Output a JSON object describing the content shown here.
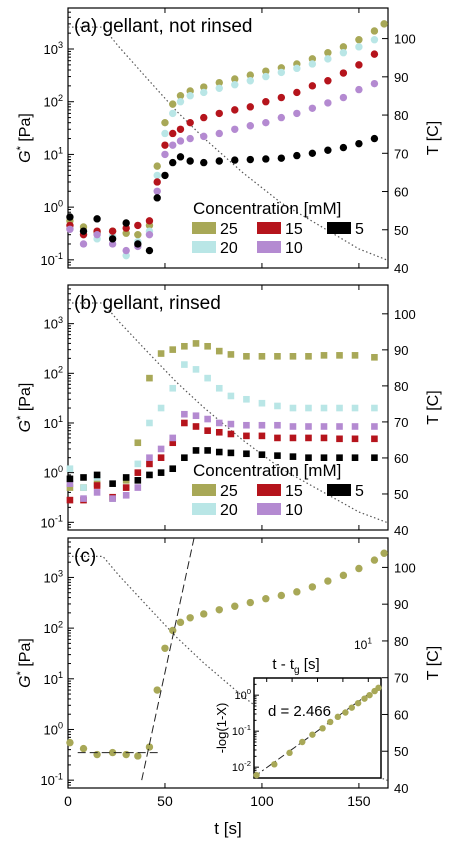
{
  "colors": {
    "c25": "#a8a857",
    "c20": "#b9e6e6",
    "c15": "#b5141c",
    "c10": "#b48ad1",
    "c5": "#000000",
    "axis": "#000000",
    "ttrace": "#555555"
  },
  "shared": {
    "ylabel_main": "G",
    "ylabel_sup": "*",
    "ylabel_unit": " [Pa]",
    "ylabel_right": "T [C]",
    "xlabel": "t [s]",
    "x_ticks": [
      "0",
      "50",
      "100",
      "150"
    ],
    "y_ticks_left": [
      {
        "base": "10",
        "exp": "-1"
      },
      {
        "base": "10",
        "exp": "0"
      },
      {
        "base": "10",
        "exp": "1"
      },
      {
        "base": "10",
        "exp": "2"
      },
      {
        "base": "10",
        "exp": "3"
      }
    ],
    "y_ticks_right": [
      "40",
      "50",
      "60",
      "70",
      "80",
      "90",
      "100"
    ],
    "legend_title": "Concentration [mM]",
    "legend_items": [
      "25",
      "20",
      "15",
      "10",
      "5"
    ]
  },
  "chart_data": [
    {
      "type": "scatter",
      "title": "(a) gellant, not rinsed",
      "xlabel": "",
      "ylabel": "G* [Pa]",
      "ylabel_right": "T [C]",
      "xlim": [
        0,
        165
      ],
      "ylim": [
        0.07,
        6000
      ],
      "yscale": "log",
      "ylim_right": [
        40,
        108
      ],
      "legend": {
        "title": "Concentration [mM]",
        "placement": "lower-right"
      },
      "series": [
        {
          "name": "25",
          "x": [
            1,
            8,
            15,
            23,
            30,
            36,
            42,
            46,
            50,
            54,
            58,
            63,
            70,
            78,
            86,
            94,
            102,
            110,
            118,
            126,
            134,
            142,
            150,
            158,
            163
          ],
          "y": [
            0.55,
            0.42,
            0.32,
            0.35,
            0.32,
            0.3,
            0.45,
            6,
            40,
            90,
            130,
            160,
            190,
            230,
            270,
            320,
            380,
            440,
            520,
            650,
            850,
            1100,
            1500,
            2200,
            3000
          ]
        },
        {
          "name": "20",
          "x": [
            1,
            8,
            15,
            23,
            30,
            36,
            42,
            46,
            50,
            54,
            58,
            63,
            70,
            78,
            86,
            94,
            102,
            110,
            118,
            126,
            134,
            142,
            150,
            158
          ],
          "y": [
            0.4,
            0.3,
            0.25,
            0.28,
            0.12,
            0.22,
            0.35,
            4,
            25,
            60,
            100,
            130,
            150,
            180,
            210,
            250,
            300,
            360,
            430,
            520,
            650,
            850,
            1100,
            1500
          ]
        },
        {
          "name": "15",
          "x": [
            1,
            8,
            15,
            23,
            30,
            36,
            42,
            46,
            50,
            54,
            58,
            63,
            70,
            78,
            86,
            94,
            102,
            110,
            118,
            126,
            134,
            142,
            150,
            158
          ],
          "y": [
            0.45,
            0.3,
            0.35,
            0.35,
            0.4,
            0.45,
            0.55,
            3,
            15,
            25,
            30,
            40,
            50,
            60,
            70,
            80,
            100,
            120,
            150,
            200,
            250,
            350,
            500,
            800
          ]
        },
        {
          "name": "10",
          "x": [
            1,
            8,
            15,
            23,
            30,
            36,
            42,
            46,
            50,
            54,
            58,
            63,
            70,
            78,
            86,
            94,
            102,
            110,
            118,
            126,
            134,
            142,
            150,
            158
          ],
          "y": [
            0.38,
            0.2,
            0.3,
            0.2,
            0.15,
            0.18,
            0.3,
            2,
            10,
            15,
            18,
            20,
            22,
            25,
            30,
            35,
            40,
            50,
            60,
            75,
            95,
            120,
            170,
            220
          ]
        },
        {
          "name": "5",
          "x": [
            1,
            8,
            15,
            23,
            30,
            36,
            42,
            46,
            50,
            54,
            58,
            63,
            70,
            78,
            86,
            94,
            102,
            110,
            118,
            126,
            134,
            142,
            150,
            158
          ],
          "y": [
            0.65,
            0.35,
            0.6,
            0.25,
            0.5,
            0.2,
            0.15,
            1.5,
            4,
            7,
            9,
            7.5,
            7,
            7.5,
            7.8,
            8,
            8.2,
            8.5,
            9.5,
            10.5,
            12,
            13.5,
            16,
            20
          ]
        }
      ],
      "temperature_line": {
        "x": [
          0,
          18,
          26,
          40,
          56,
          70,
          90,
          110,
          130,
          150,
          165
        ],
        "y": [
          103,
          103,
          98,
          90,
          81,
          74,
          65,
          57,
          51,
          45,
          42
        ]
      }
    },
    {
      "type": "scatter",
      "title": "(b) gellant, rinsed",
      "xlabel": "",
      "ylabel": "G* [Pa]",
      "ylabel_right": "T [C]",
      "xlim": [
        0,
        165
      ],
      "ylim": [
        0.07,
        6000
      ],
      "yscale": "log",
      "ylim_right": [
        40,
        108
      ],
      "legend": {
        "title": "Concentration [mM]",
        "placement": "lower-right"
      },
      "series": [
        {
          "name": "25",
          "x": [
            1,
            8,
            15,
            23,
            30,
            36,
            42,
            48,
            54,
            60,
            66,
            72,
            78,
            84,
            92,
            100,
            108,
            116,
            124,
            132,
            140,
            148,
            158
          ],
          "y": [
            0.5,
            0.5,
            0.6,
            0.3,
            0.7,
            4,
            80,
            250,
            300,
            350,
            400,
            350,
            280,
            240,
            220,
            220,
            220,
            220,
            220,
            230,
            230,
            230,
            210
          ]
        },
        {
          "name": "20",
          "x": [
            1,
            8,
            15,
            23,
            30,
            36,
            42,
            48,
            54,
            60,
            66,
            72,
            78,
            84,
            92,
            100,
            108,
            116,
            124,
            132,
            140,
            148,
            158
          ],
          "y": [
            1.2,
            0.5,
            0.8,
            0.3,
            0.5,
            1.5,
            10,
            20,
            50,
            150,
            120,
            80,
            50,
            35,
            30,
            25,
            22,
            20,
            20,
            20,
            20,
            20,
            20
          ]
        },
        {
          "name": "15",
          "x": [
            1,
            8,
            15,
            23,
            30,
            36,
            42,
            48,
            54,
            60,
            66,
            72,
            78,
            84,
            92,
            100,
            108,
            116,
            124,
            132,
            140,
            148,
            158
          ],
          "y": [
            0.28,
            0.28,
            0.55,
            0.32,
            0.5,
            1,
            1.5,
            2,
            4,
            10,
            8.5,
            7,
            6.5,
            6,
            5.5,
            5.5,
            5,
            5,
            5,
            5,
            4.8,
            4.8,
            4.8
          ]
        },
        {
          "name": "10",
          "x": [
            1,
            8,
            15,
            23,
            30,
            36,
            42,
            48,
            54,
            60,
            66,
            72,
            78,
            84,
            92,
            100,
            108,
            116,
            124,
            132,
            140,
            148,
            158
          ],
          "y": [
            0.6,
            0.3,
            0.4,
            0.3,
            0.35,
            0.5,
            2,
            3,
            5,
            15,
            14,
            12,
            10,
            9.5,
            9,
            9,
            9,
            8.5,
            8.5,
            8.5,
            8.5,
            8.5,
            8.5
          ]
        },
        {
          "name": "5",
          "x": [
            1,
            8,
            15,
            23,
            30,
            36,
            42,
            48,
            54,
            60,
            66,
            72,
            78,
            84,
            92,
            100,
            108,
            116,
            124,
            132,
            140,
            148,
            158
          ],
          "y": [
            0.75,
            0.8,
            0.9,
            0.6,
            0.8,
            0.7,
            0.9,
            1,
            1.2,
            2,
            2.8,
            2.8,
            2.6,
            2.5,
            2.4,
            2.3,
            2.2,
            2.1,
            2.0,
            2.0,
            2.0,
            2.0,
            2.0
          ]
        }
      ],
      "temperature_line": {
        "x": [
          0,
          18,
          26,
          40,
          56,
          70,
          90,
          110,
          130,
          150,
          165
        ],
        "y": [
          103,
          103,
          98,
          90,
          81,
          74,
          65,
          57,
          51,
          45,
          42
        ]
      }
    },
    {
      "type": "scatter",
      "title": "(c)",
      "xlabel": "t [s]",
      "ylabel": "G* [Pa]",
      "ylabel_right": "T [C]",
      "xlim": [
        0,
        165
      ],
      "ylim": [
        0.07,
        6000
      ],
      "yscale": "log",
      "ylim_right": [
        40,
        108
      ],
      "series": [
        {
          "name": "25",
          "x": [
            1,
            8,
            15,
            23,
            30,
            36,
            42,
            46,
            50,
            54,
            58,
            63,
            70,
            78,
            86,
            94,
            102,
            110,
            118,
            126,
            134,
            142,
            150,
            158,
            163
          ],
          "y": [
            0.55,
            0.42,
            0.32,
            0.35,
            0.32,
            0.3,
            0.45,
            6,
            40,
            90,
            130,
            160,
            190,
            230,
            270,
            320,
            380,
            440,
            520,
            650,
            850,
            1100,
            1500,
            2200,
            3000
          ]
        }
      ],
      "baseline_line": {
        "x": [
          5,
          48
        ],
        "y": [
          0.35,
          0.35
        ]
      },
      "growth_line": {
        "x": [
          38,
          65
        ],
        "y": [
          0.1,
          6000
        ]
      },
      "temperature_line": {
        "x": [
          0,
          18,
          26,
          40,
          56,
          70,
          90,
          110,
          130,
          150,
          165
        ],
        "y": [
          103,
          103,
          98,
          90,
          81,
          74,
          65,
          57,
          51,
          45,
          42
        ]
      },
      "inset": {
        "type": "scatter",
        "xlabel_main": "t - t",
        "xlabel_sub": "g",
        "xlabel_unit": " [s]",
        "x_top_tick": {
          "base": "10",
          "exp": "1"
        },
        "ylabel": "-log(1-X)",
        "yscale": "log",
        "ylim": [
          0.005,
          3
        ],
        "y_ticks": [
          {
            "base": "10",
            "exp": "-2"
          },
          {
            "base": "10",
            "exp": "-1"
          },
          {
            "base": "10",
            "exp": "0"
          }
        ],
        "annotation": "d = 2.466",
        "x": [
          0.02,
          0.16,
          0.28,
          0.38,
          0.46,
          0.54,
          0.6,
          0.66,
          0.72,
          0.77,
          0.82,
          0.87,
          0.91,
          0.95,
          0.98
        ],
        "y": [
          0.006,
          0.012,
          0.025,
          0.05,
          0.08,
          0.12,
          0.18,
          0.25,
          0.33,
          0.45,
          0.6,
          0.8,
          1.0,
          1.3,
          1.6
        ],
        "fit_line": {
          "x": [
            -0.02,
            1.0
          ],
          "y": [
            0.0045,
            1.9
          ]
        }
      }
    }
  ]
}
